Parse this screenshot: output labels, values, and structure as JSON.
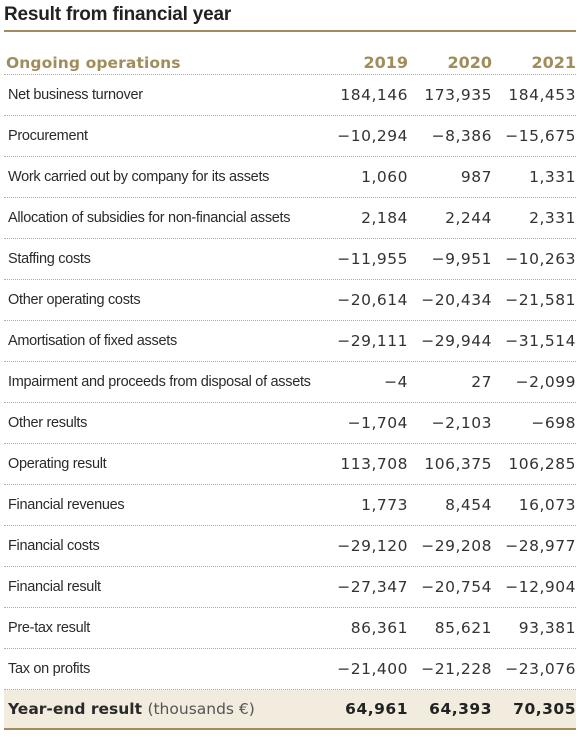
{
  "title": "Result from financial year",
  "table": {
    "header_label": "Ongoing operations",
    "years": [
      "2019",
      "2020",
      "2021"
    ],
    "rows": [
      {
        "label": "Net business turnover",
        "values": [
          "184,146",
          "173,935",
          "184,453"
        ]
      },
      {
        "label": "Procurement",
        "values": [
          "−10,294",
          "−8,386",
          "−15,675"
        ]
      },
      {
        "label": "Work carried out by company for its assets",
        "values": [
          "1,060",
          "987",
          "1,331"
        ]
      },
      {
        "label": "Allocation of subsidies for non-financial assets",
        "values": [
          "2,184",
          "2,244",
          "2,331"
        ]
      },
      {
        "label": "Staffing costs",
        "values": [
          "−11,955",
          "−9,951",
          "−10,263"
        ]
      },
      {
        "label": "Other operating costs",
        "values": [
          "−20,614",
          "−20,434",
          "−21,581"
        ]
      },
      {
        "label": "Amortisation of fixed assets",
        "values": [
          "−29,111",
          "−29,944",
          "−31,514"
        ]
      },
      {
        "label": "Impairment and proceeds from disposal of assets",
        "values": [
          "−4",
          "27",
          "−2,099"
        ]
      },
      {
        "label": "Other results",
        "values": [
          "−1,704",
          "−2,103",
          "−698"
        ]
      },
      {
        "label": "Operating result",
        "values": [
          "113,708",
          "106,375",
          "106,285"
        ]
      },
      {
        "label": "Financial revenues",
        "values": [
          "1,773",
          "8,454",
          "16,073"
        ]
      },
      {
        "label": "Financial costs",
        "values": [
          "−29,120",
          "−29,208",
          "−28,977"
        ]
      },
      {
        "label": "Financial result",
        "values": [
          "−27,347",
          "−20,754",
          "−12,904"
        ]
      },
      {
        "label": "Pre-tax result",
        "values": [
          "86,361",
          "85,621",
          "93,381"
        ]
      },
      {
        "label": "Tax on profits",
        "values": [
          "−21,400",
          "−21,228",
          "−23,076"
        ]
      }
    ],
    "total": {
      "label": "Year-end result",
      "unit": "(thousands €)",
      "values": [
        "64,961",
        "64,393",
        "70,305"
      ]
    }
  }
}
